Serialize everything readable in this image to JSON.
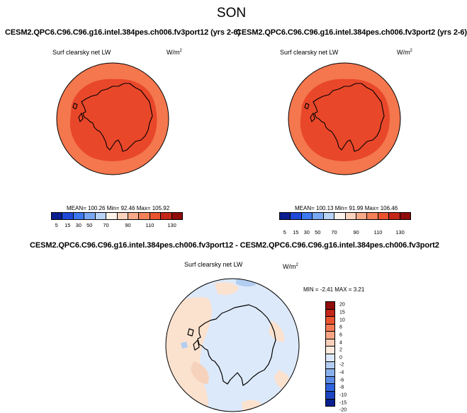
{
  "season": "SON",
  "colors": {
    "outer_fill": "#F4774E",
    "inner_fill": "#E9472A",
    "continent_stroke": "#000000",
    "diff_bg": "#DCE9FA",
    "diff_warm": "#FBE2CF",
    "diff_cool": "#B3CDF1"
  },
  "panels": [
    {
      "title": "CESM2.QPC6.C96.C96.g16.intel.384pes.ch006.fv3port12 (yrs 2-6)",
      "variable": "Surf clearsky net LW",
      "units": "W/m",
      "units_exp": "2",
      "stats": "MEAN= 100.26  Min=  92.46  Max= 105.92"
    },
    {
      "title": "CESM2.QPC6.C96.C96.g16.intel.384pes.ch006.fv3port2 (yrs 2-6)",
      "variable": "Surf clearsky net LW",
      "units": "W/m",
      "units_exp": "2",
      "stats": "MEAN= 100.13  Min=  91.99  Max= 106.46"
    }
  ],
  "colorbar": {
    "colors": [
      "#0A1F8F",
      "#1E48D8",
      "#3E78F0",
      "#79A8F3",
      "#B9D3F7",
      "#FDF2EC",
      "#FAD3BF",
      "#F6AA89",
      "#F28058",
      "#E9542F",
      "#C42618",
      "#8E0C0A"
    ],
    "ticks": [
      "5",
      "15",
      "30",
      "50",
      "70",
      "90",
      "110",
      "130"
    ]
  },
  "diff": {
    "title": "CESM2.QPC6.C96.C96.g16.intel.384pes.ch006.fv3port12 - CESM2.QPC6.C96.C96.g16.intel.384pes.ch006.fv3port2",
    "variable": "Surf clearsky net LW",
    "units": "W/m",
    "units_exp": "2",
    "stats": "MIN = -2.41  MAX =  3.21",
    "colorbar": {
      "colors": [
        "#8E0C0A",
        "#C42618",
        "#E9542F",
        "#F27A55",
        "#F6A484",
        "#FAD0BA",
        "#FDEBDF",
        "#DCE9FA",
        "#B3CDF1",
        "#8AB0EC",
        "#5B8BE6",
        "#2F63DC",
        "#1D44C1",
        "#0A1F8F"
      ],
      "ticks": [
        "20",
        "15",
        "10",
        "8",
        "6",
        "4",
        "2",
        "0",
        "-2",
        "-4",
        "-6",
        "-8",
        "-10",
        "-15",
        "-20"
      ]
    }
  }
}
